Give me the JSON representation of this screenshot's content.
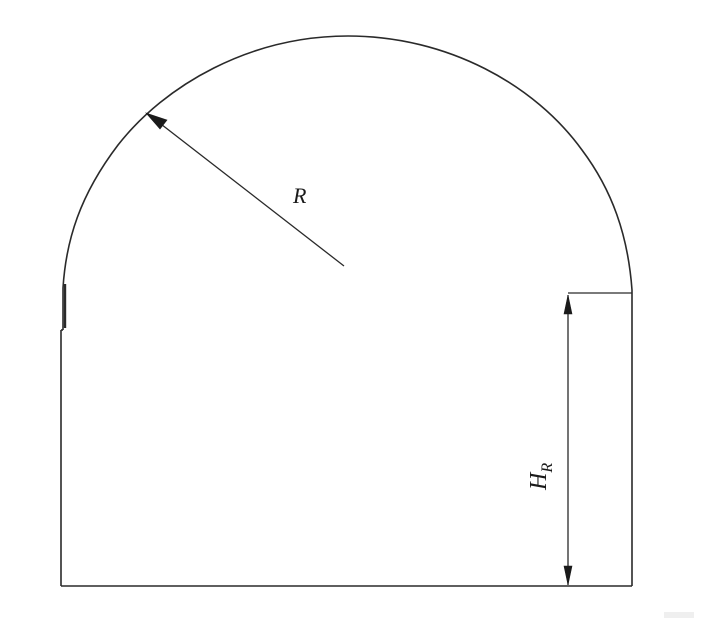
{
  "diagram": {
    "radius_label": "R",
    "height_label_main": "H",
    "height_label_sub": "R"
  },
  "colors": {
    "line": "#2a2a2a",
    "background": "#ffffff"
  }
}
